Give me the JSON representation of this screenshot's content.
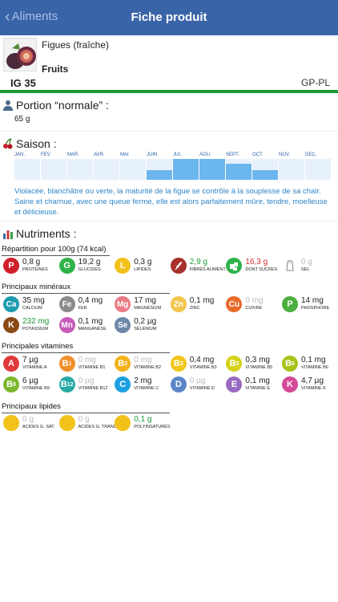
{
  "nav": {
    "back": "Aliments",
    "title": "Fiche produit"
  },
  "product": {
    "name": "Figues (fraîche)",
    "category": "Fruits",
    "ig": "IG 35",
    "gppl": "GP-PL"
  },
  "portion": {
    "title": "Portion “normale” :",
    "value": "65 g"
  },
  "season": {
    "title": "Saison :",
    "months": [
      {
        "label": "JAN.",
        "level": 0
      },
      {
        "label": "FEV.",
        "level": 0
      },
      {
        "label": "MAR.",
        "level": 0
      },
      {
        "label": "AVR.",
        "level": 0
      },
      {
        "label": "MAI",
        "level": 0
      },
      {
        "label": "JUIN",
        "level": 0.45
      },
      {
        "label": "JUI.",
        "level": 1
      },
      {
        "label": "AOU.",
        "level": 1
      },
      {
        "label": "SEPT.",
        "level": 0.75
      },
      {
        "label": "OCT.",
        "level": 0.45
      },
      {
        "label": "NOV.",
        "level": 0
      },
      {
        "label": "DEC.",
        "level": 0
      }
    ]
  },
  "description": "Violacée, blanchâtre ou verte, la maturité de la figue se contrôle à la souplesse de sa chair. Saine et charnue, avec une queue ferme, elle est alors parfaitement mûre, tendre, moelleuse et délicieuse.",
  "nutriments": {
    "title": "Nutriments :",
    "repartition": {
      "title": "Répartition pour 100g (74 kcal)",
      "items": [
        {
          "letter": "P",
          "value": "0,8 g",
          "name": "PROTÉINES",
          "color": "#d0202a",
          "state": "normal"
        },
        {
          "letter": "G",
          "value": "19,2 g",
          "name": "GLUCIDES",
          "color": "#2fb24a",
          "state": "normal"
        },
        {
          "letter": "L",
          "value": "0,3 g",
          "name": "LIPIDES",
          "color": "#f2c21a",
          "state": "normal"
        },
        {
          "letter": "",
          "value": "2,9 g",
          "name": "FIBRES ALIMENT.",
          "color": "#a8302c",
          "state": "green",
          "icon": "wheat-icon"
        },
        {
          "letter": "",
          "value": "16,3 g",
          "name": "DONT SUCRES",
          "color": "#2fb24a",
          "state": "red",
          "icon": "sugar-icon"
        },
        {
          "letter": "",
          "value": "0 g",
          "name": "SEL",
          "color": "#ffffff",
          "state": "grey",
          "icon": "salt-icon"
        }
      ]
    },
    "mineraux": {
      "title": "Principaux minéraux",
      "items": [
        {
          "letter": "Ca",
          "value": "35 mg",
          "name": "CALCIUM",
          "color": "#1e9bb0",
          "state": "normal"
        },
        {
          "letter": "Fe",
          "value": "0,4 mg",
          "name": "FER",
          "color": "#8a8a8a",
          "state": "normal"
        },
        {
          "letter": "Mg",
          "value": "17 mg",
          "name": "MAGNÉSIUM",
          "color": "#ea7a84",
          "state": "normal"
        },
        {
          "letter": "Zn",
          "value": "0,1 mg",
          "name": "ZINC",
          "color": "#f3c44e",
          "state": "normal"
        },
        {
          "letter": "Cu",
          "value": "0 mg",
          "name": "CUIVRE",
          "color": "#e86a2a",
          "state": "grey"
        },
        {
          "letter": "P",
          "value": "14 mg",
          "name": "PHOSPHORE",
          "color": "#4cae3f",
          "state": "normal"
        },
        {
          "letter": "K",
          "value": "232 mg",
          "name": "POTASSIUM",
          "color": "#8a4a16",
          "state": "green"
        },
        {
          "letter": "Mn",
          "value": "0,1 mg",
          "name": "MANGANÈSE",
          "color": "#c65ab8",
          "state": "normal"
        },
        {
          "letter": "Se",
          "value": "0,2 µg",
          "name": "SÉLÉNIUM",
          "color": "#6f87a8",
          "state": "normal"
        }
      ]
    },
    "vitamines": {
      "title": "Principales vitamines",
      "items": [
        {
          "letter": "A",
          "sub": "",
          "value": "7 µg",
          "name": "VITAMINE A",
          "color": "#e03a3a",
          "state": "normal"
        },
        {
          "letter": "B",
          "sub": "1",
          "value": "0 mg",
          "name": "VITAMINE B1",
          "color": "#f0902a",
          "state": "grey"
        },
        {
          "letter": "B",
          "sub": "2",
          "value": "0 mg",
          "name": "VITAMINE B2",
          "color": "#f2b21a",
          "state": "grey"
        },
        {
          "letter": "B",
          "sub": "3",
          "value": "0,4 mg",
          "name": "VITAMINE B3",
          "color": "#f2c61a",
          "state": "normal"
        },
        {
          "letter": "B",
          "sub": "5",
          "value": "0,3 mg",
          "name": "VITAMINE B5",
          "color": "#d6d21a",
          "state": "normal"
        },
        {
          "letter": "B",
          "sub": "6",
          "value": "0,1 mg",
          "name": "VITAMINE B6",
          "color": "#a8c41a",
          "state": "normal"
        },
        {
          "letter": "B",
          "sub": "9",
          "value": "6 µg",
          "name": "VITAMINE B9",
          "color": "#7cb82e",
          "state": "normal"
        },
        {
          "letter": "B",
          "sub": "12",
          "value": "0 µg",
          "name": "VITAMINE B12",
          "color": "#28a9a6",
          "state": "grey"
        },
        {
          "letter": "C",
          "sub": "",
          "value": "2 mg",
          "name": "VITAMINE C",
          "color": "#1e9fe0",
          "state": "normal"
        },
        {
          "letter": "D",
          "sub": "",
          "value": "0 µg",
          "name": "VITAMINE D",
          "color": "#5b86c8",
          "state": "grey"
        },
        {
          "letter": "E",
          "sub": "",
          "value": "0,1 mg",
          "name": "VITAMINE E",
          "color": "#9a6ac0",
          "state": "normal"
        },
        {
          "letter": "K",
          "sub": "",
          "value": "4,7 µg",
          "name": "VITAMINE K",
          "color": "#d44a96",
          "state": "normal"
        }
      ]
    },
    "lipides": {
      "title": "Principaux lipides",
      "items": [
        {
          "letter": "",
          "value": "0 g",
          "name": "ACIDES G. SAT.",
          "color": "#f2c21a",
          "state": "grey"
        },
        {
          "letter": "",
          "value": "0 g",
          "name": "ACIDES G. TRANS",
          "color": "#f2c21a",
          "state": "grey"
        },
        {
          "letter": "",
          "value": "0,1 g",
          "name": "POLYINSATURÉS",
          "color": "#f2c21a",
          "state": "green"
        }
      ]
    }
  }
}
